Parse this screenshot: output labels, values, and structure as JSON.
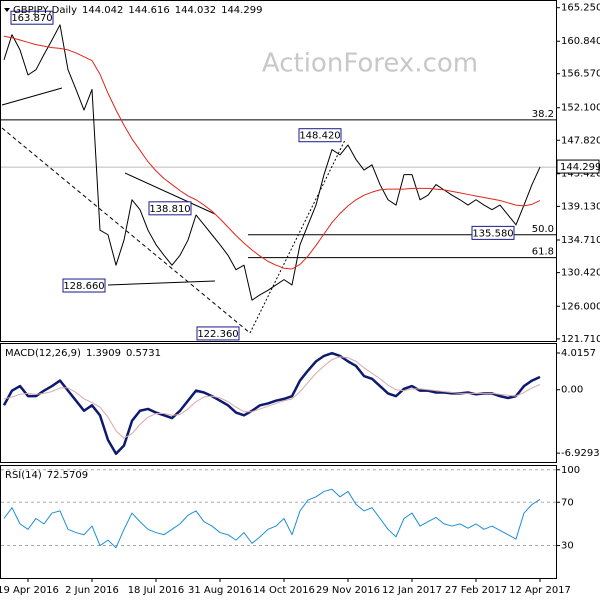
{
  "chart_data": [
    {
      "type": "line",
      "title": "GBPJPY,Daily",
      "ohlc": [
        144.042,
        144.616,
        144.032,
        144.299
      ],
      "watermark": "ActionForex.com",
      "ylim": [
        121.3,
        166.0
      ],
      "yticks": [
        {
          "value": 165.25,
          "label": "165.250"
        },
        {
          "value": 160.84,
          "label": "160.840"
        },
        {
          "value": 156.57,
          "label": "156.570"
        },
        {
          "value": 152.1,
          "label": "152.100"
        },
        {
          "value": 147.82,
          "label": "147.820"
        },
        {
          "value": 143.42,
          "label": "143.420"
        },
        {
          "value": 139.13,
          "label": "139.130"
        },
        {
          "value": 134.71,
          "label": "134.710"
        },
        {
          "value": 130.42,
          "label": "130.420"
        },
        {
          "value": 126.0,
          "label": "126.000"
        },
        {
          "value": 121.71,
          "label": "121.710"
        }
      ],
      "last_price": 144.299,
      "series": [
        {
          "color": "#000000",
          "values": [
            158.4,
            161.7,
            159.7,
            156.4,
            157.1,
            159.1,
            161.0,
            163.0,
            157.1,
            154.5,
            151.8,
            154.5,
            136.0,
            135.4,
            131.4,
            134.7,
            140.0,
            138.7,
            136.0,
            134.1,
            132.7,
            131.4,
            132.7,
            134.7,
            138.0,
            136.7,
            135.4,
            134.1,
            132.7,
            130.8,
            131.4,
            126.8,
            127.5,
            128.1,
            128.8,
            129.5,
            128.8,
            134.1,
            136.7,
            139.3,
            143.3,
            146.6,
            145.9,
            147.2,
            145.3,
            143.9,
            144.6,
            142.0,
            140.0,
            139.3,
            143.3,
            143.3,
            140.0,
            140.6,
            142.0,
            141.3,
            140.6,
            140.0,
            139.3,
            140.0,
            139.3,
            138.7,
            139.3,
            138.0,
            136.7,
            139.3,
            142.0,
            144.3
          ]
        },
        {
          "color": "#e0261c",
          "values": [
            161.5,
            161.3,
            161.0,
            160.7,
            160.4,
            160.2,
            160.0,
            159.9,
            159.7,
            159.3,
            158.8,
            158.3,
            156.5,
            154.0,
            151.8,
            149.8,
            148.0,
            146.5,
            145.0,
            143.8,
            142.8,
            142.0,
            141.2,
            140.5,
            140.0,
            139.3,
            138.5,
            137.5,
            136.4,
            135.3,
            134.3,
            133.4,
            132.6,
            131.9,
            131.4,
            131.0,
            130.9,
            131.5,
            132.6,
            134.0,
            135.5,
            137.0,
            138.2,
            139.2,
            140.0,
            140.6,
            141.0,
            141.3,
            141.4,
            141.4,
            141.4,
            141.5,
            141.5,
            141.5,
            141.4,
            141.3,
            141.1,
            140.9,
            140.7,
            140.5,
            140.3,
            140.1,
            139.9,
            139.6,
            139.3,
            139.2,
            139.4,
            139.9
          ]
        }
      ],
      "annotations": [
        {
          "value": 163.87,
          "label": "163.870"
        },
        {
          "value": 148.42,
          "label": "148.420"
        },
        {
          "value": 138.81,
          "label": "138.810"
        },
        {
          "value": 128.66,
          "label": "128.660"
        },
        {
          "value": 122.36,
          "label": "122.360"
        },
        {
          "value": 135.58,
          "label": "135.580"
        }
      ],
      "fib_levels": [
        {
          "ratio": 38.2,
          "price": 150.5
        },
        {
          "ratio": {
            "value": 50,
            "label": "50.0"
          },
          "price": 135.4
        },
        {
          "ratio": 61.8,
          "price": 132.4
        }
      ]
    },
    {
      "type": "line",
      "title": "MACD(12,26,9)",
      "readout": [
        1.3909,
        0.5731
      ],
      "ylim": [
        -7.9,
        5.0
      ],
      "yticks": [
        4.0157,
        {
          "value": 0,
          "label": "0.00"
        },
        -6.9293
      ],
      "grid": false,
      "series": [
        {
          "color": "#0d1a70",
          "values": [
            -1.7,
            -0.1,
            0.4,
            -0.7,
            -0.7,
            -0.1,
            0.4,
            1.0,
            -0.1,
            -1.2,
            -2.3,
            -1.7,
            -2.8,
            -5.5,
            -7.0,
            -6.1,
            -3.4,
            -2.3,
            -2.1,
            -2.5,
            -2.8,
            -3.1,
            -2.3,
            -1.2,
            -0.1,
            -0.3,
            -0.7,
            -1.2,
            -1.7,
            -2.5,
            -2.8,
            -2.3,
            -1.7,
            -1.5,
            -1.2,
            -1.0,
            -0.7,
            1.0,
            2.1,
            3.1,
            3.7,
            4.0,
            3.7,
            3.1,
            2.6,
            1.5,
            1.2,
            0.4,
            -0.4,
            -0.7,
            0.1,
            0.4,
            -0.1,
            -0.1,
            -0.3,
            -0.3,
            -0.4,
            -0.4,
            -0.3,
            -0.5,
            -0.4,
            -0.4,
            -0.7,
            -0.9,
            -0.7,
            0.4,
            1.0,
            1.3909
          ]
        },
        {
          "color": "#d9a9a9",
          "values": [
            -1.0,
            -0.8,
            -0.5,
            -0.4,
            -0.5,
            -0.4,
            -0.2,
            0.2,
            0.2,
            -0.3,
            -1.0,
            -1.4,
            -1.9,
            -3.0,
            -4.5,
            -5.3,
            -4.8,
            -3.8,
            -3.0,
            -2.6,
            -2.6,
            -2.8,
            -2.7,
            -2.1,
            -1.3,
            -0.8,
            -0.7,
            -0.9,
            -1.3,
            -1.9,
            -2.4,
            -2.4,
            -2.1,
            -1.8,
            -1.5,
            -1.2,
            -1.0,
            -0.2,
            0.8,
            1.8,
            2.6,
            3.3,
            3.6,
            3.5,
            3.1,
            2.4,
            1.8,
            1.2,
            0.5,
            0.0,
            -0.1,
            0.1,
            0.1,
            0.0,
            -0.1,
            -0.2,
            -0.3,
            -0.4,
            -0.4,
            -0.4,
            -0.4,
            -0.4,
            -0.5,
            -0.6,
            -0.7,
            -0.3,
            0.2,
            0.5731
          ]
        }
      ]
    },
    {
      "type": "line",
      "title": "RSI(14)",
      "readout": [
        72.5709
      ],
      "ylim": [
        0,
        103.5
      ],
      "yticks": [
        100,
        70,
        30
      ],
      "grid": true,
      "categories": [
        null,
        null,
        null,
        "19 Apr 2016",
        null,
        null,
        null,
        null,
        null,
        null,
        null,
        "2 Jun 2016",
        null,
        null,
        null,
        null,
        null,
        null,
        null,
        "18 Jul 2016",
        null,
        null,
        null,
        null,
        null,
        null,
        null,
        "31 Aug 2016",
        null,
        null,
        null,
        null,
        null,
        null,
        null,
        "14 Oct 2016",
        null,
        null,
        null,
        null,
        null,
        null,
        null,
        "29 Nov 2016",
        null,
        null,
        null,
        null,
        null,
        null,
        null,
        "12 Jan 2017",
        null,
        null,
        null,
        null,
        null,
        null,
        null,
        "27 Feb 2017",
        null,
        null,
        null,
        null,
        null,
        null,
        null,
        "12 Apr 2017"
      ],
      "series": [
        {
          "color": "#1f8fd6",
          "values": [
            55,
            65,
            50,
            45,
            55,
            50,
            60,
            62,
            45,
            42,
            40,
            48,
            30,
            35,
            28,
            45,
            60,
            52,
            45,
            42,
            40,
            45,
            50,
            58,
            62,
            52,
            48,
            42,
            40,
            35,
            42,
            32,
            38,
            45,
            48,
            55,
            40,
            62,
            72,
            75,
            80,
            82,
            75,
            80,
            68,
            62,
            65,
            55,
            45,
            38,
            55,
            60,
            48,
            52,
            56,
            50,
            48,
            50,
            46,
            50,
            45,
            48,
            44,
            40,
            36,
            60,
            68,
            72.5709
          ]
        }
      ]
    }
  ]
}
